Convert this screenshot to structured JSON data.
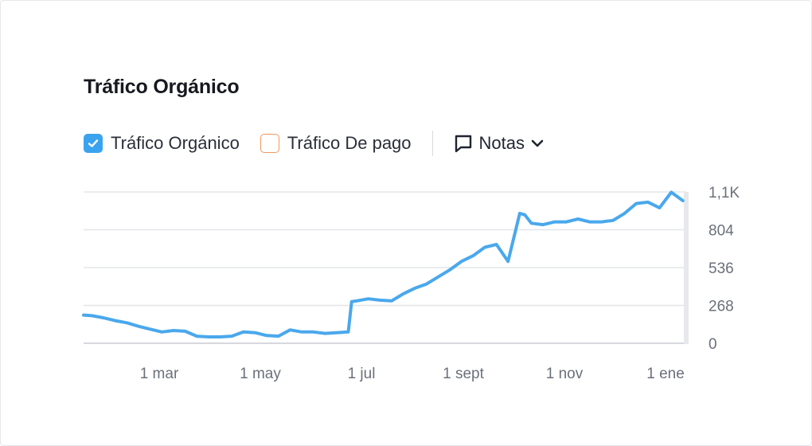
{
  "title": "Tráfico Orgánico",
  "legend": {
    "organic": {
      "label": "Tráfico Orgánico",
      "checked": true,
      "color": "#3aa3f0"
    },
    "paid": {
      "label": "Tráfico De pago",
      "checked": false,
      "color": "#f0995a"
    }
  },
  "notes": {
    "label": "Notas",
    "icon": "speech-bubble-icon",
    "chevron": "chevron-down-icon"
  },
  "colors": {
    "line": "#4aa8ec",
    "grid": "#e3e5e9",
    "tick": "#6b707a"
  },
  "chart_data": {
    "type": "line",
    "x_axis": {
      "ticks": [
        "1 mar",
        "1 may",
        "1 jul",
        "1 sept",
        "1 nov",
        "1 ene"
      ]
    },
    "y_axis": {
      "ticks": [
        "0",
        "268",
        "536",
        "804",
        "1,1K"
      ],
      "range": [
        0,
        1072
      ],
      "position": "right"
    },
    "grid": true,
    "series": [
      {
        "name": "Tráfico Orgánico",
        "x": [
          "2023-01-20",
          "2023-01-25",
          "2023-02-01",
          "2023-02-08",
          "2023-02-15",
          "2023-02-22",
          "2023-03-01",
          "2023-03-08",
          "2023-03-15",
          "2023-03-22",
          "2023-03-29",
          "2023-04-05",
          "2023-04-12",
          "2023-04-19",
          "2023-04-26",
          "2023-05-03",
          "2023-05-10",
          "2023-05-17",
          "2023-05-24",
          "2023-05-31",
          "2023-06-07",
          "2023-06-14",
          "2023-06-21",
          "2023-06-28",
          "2023-06-30",
          "2023-07-03",
          "2023-07-10",
          "2023-07-17",
          "2023-07-24",
          "2023-07-31",
          "2023-08-07",
          "2023-08-14",
          "2023-08-21",
          "2023-08-28",
          "2023-09-04",
          "2023-09-11",
          "2023-09-18",
          "2023-09-25",
          "2023-10-02",
          "2023-10-09",
          "2023-10-12",
          "2023-10-16",
          "2023-10-23",
          "2023-10-30",
          "2023-11-06",
          "2023-11-13",
          "2023-11-20",
          "2023-11-27",
          "2023-12-04",
          "2023-12-11",
          "2023-12-18",
          "2023-12-25",
          "2024-01-01",
          "2024-01-08",
          "2024-01-15"
        ],
        "values": [
          200,
          195,
          180,
          160,
          145,
          120,
          100,
          80,
          90,
          85,
          50,
          45,
          45,
          50,
          80,
          75,
          55,
          50,
          95,
          80,
          80,
          70,
          75,
          80,
          295,
          300,
          315,
          305,
          300,
          350,
          390,
          420,
          470,
          520,
          580,
          620,
          680,
          700,
          580,
          920,
          910,
          850,
          840,
          860,
          860,
          880,
          860,
          860,
          870,
          920,
          990,
          1000,
          960,
          1070,
          1010
        ]
      }
    ]
  }
}
